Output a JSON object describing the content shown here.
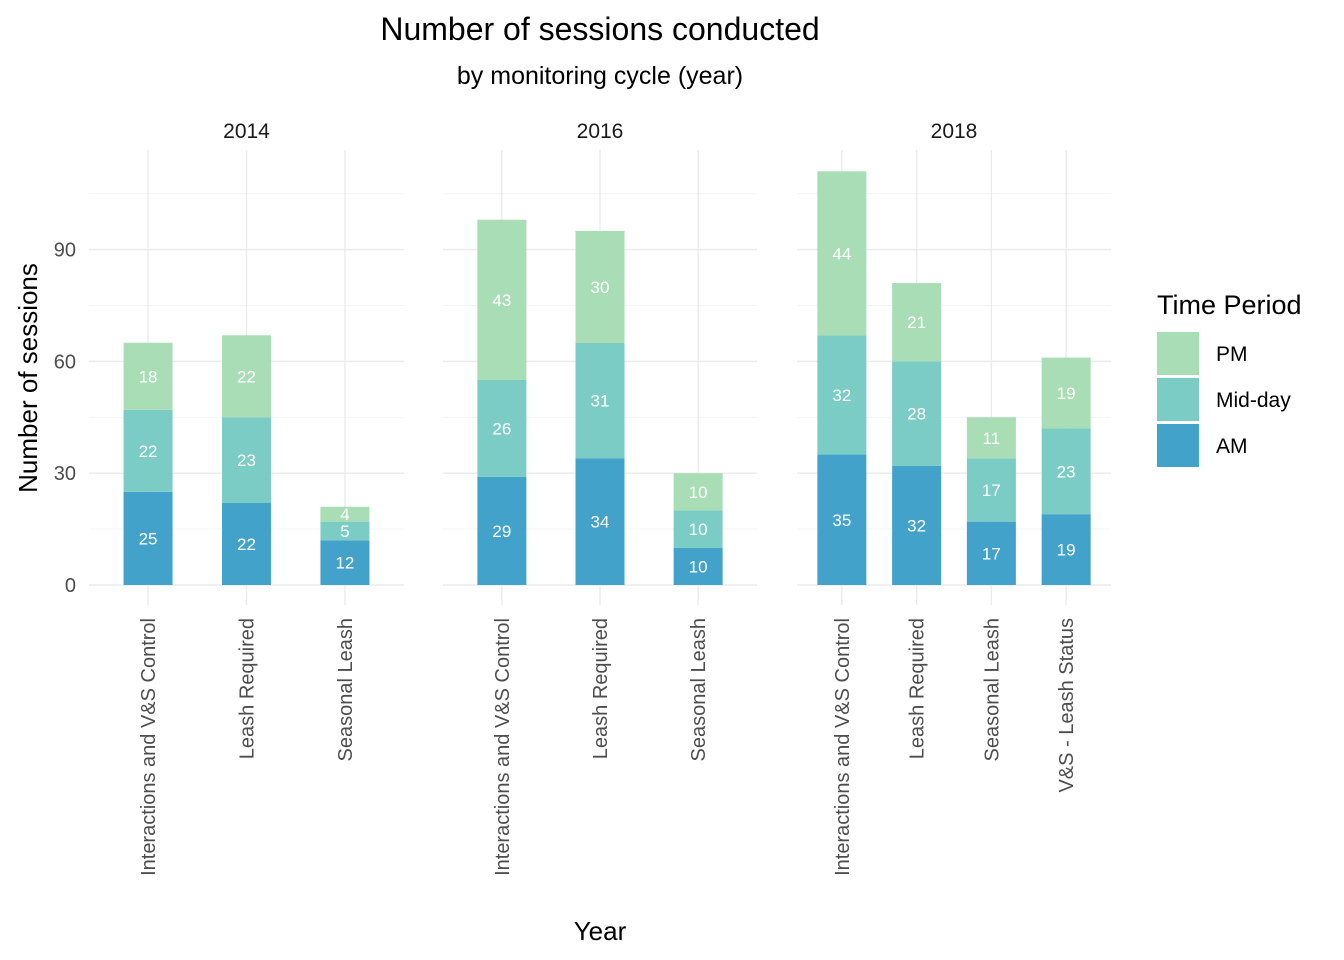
{
  "chart_data": {
    "type": "bar",
    "stacked": true,
    "title": "Number of sessions conducted",
    "subtitle": "by monitoring cycle (year)",
    "xlabel": "Year",
    "ylabel": "Number of sessions",
    "ylim": [
      0,
      115
    ],
    "yticks": [
      0,
      30,
      60,
      90
    ],
    "grid": true,
    "legend": {
      "title": "Time Period",
      "position": "right",
      "entries": [
        "PM",
        "Mid-day",
        "AM"
      ]
    },
    "series_order": [
      "AM",
      "Mid-day",
      "PM"
    ],
    "colors": {
      "AM": "#43a2ca",
      "Mid-day": "#7bccc4",
      "PM": "#a8ddb5"
    },
    "panels": [
      {
        "label": "2014",
        "categories": [
          "Interactions and V&S Control",
          "Leash Required",
          "Seasonal Leash"
        ],
        "series": [
          {
            "name": "AM",
            "values": [
              25,
              22,
              12
            ]
          },
          {
            "name": "Mid-day",
            "values": [
              22,
              23,
              5
            ]
          },
          {
            "name": "PM",
            "values": [
              18,
              22,
              4
            ]
          }
        ]
      },
      {
        "label": "2016",
        "categories": [
          "Interactions and V&S Control",
          "Leash Required",
          "Seasonal Leash"
        ],
        "series": [
          {
            "name": "AM",
            "values": [
              29,
              34,
              10
            ]
          },
          {
            "name": "Mid-day",
            "values": [
              26,
              31,
              10
            ]
          },
          {
            "name": "PM",
            "values": [
              43,
              30,
              10
            ]
          }
        ]
      },
      {
        "label": "2018",
        "categories": [
          "Interactions and V&S Control",
          "Leash Required",
          "Seasonal Leash",
          "V&S - Leash Status"
        ],
        "series": [
          {
            "name": "AM",
            "values": [
              35,
              32,
              17,
              19
            ]
          },
          {
            "name": "Mid-day",
            "values": [
              32,
              28,
              17,
              23
            ]
          },
          {
            "name": "PM",
            "values": [
              44,
              21,
              11,
              19
            ]
          }
        ]
      }
    ]
  }
}
